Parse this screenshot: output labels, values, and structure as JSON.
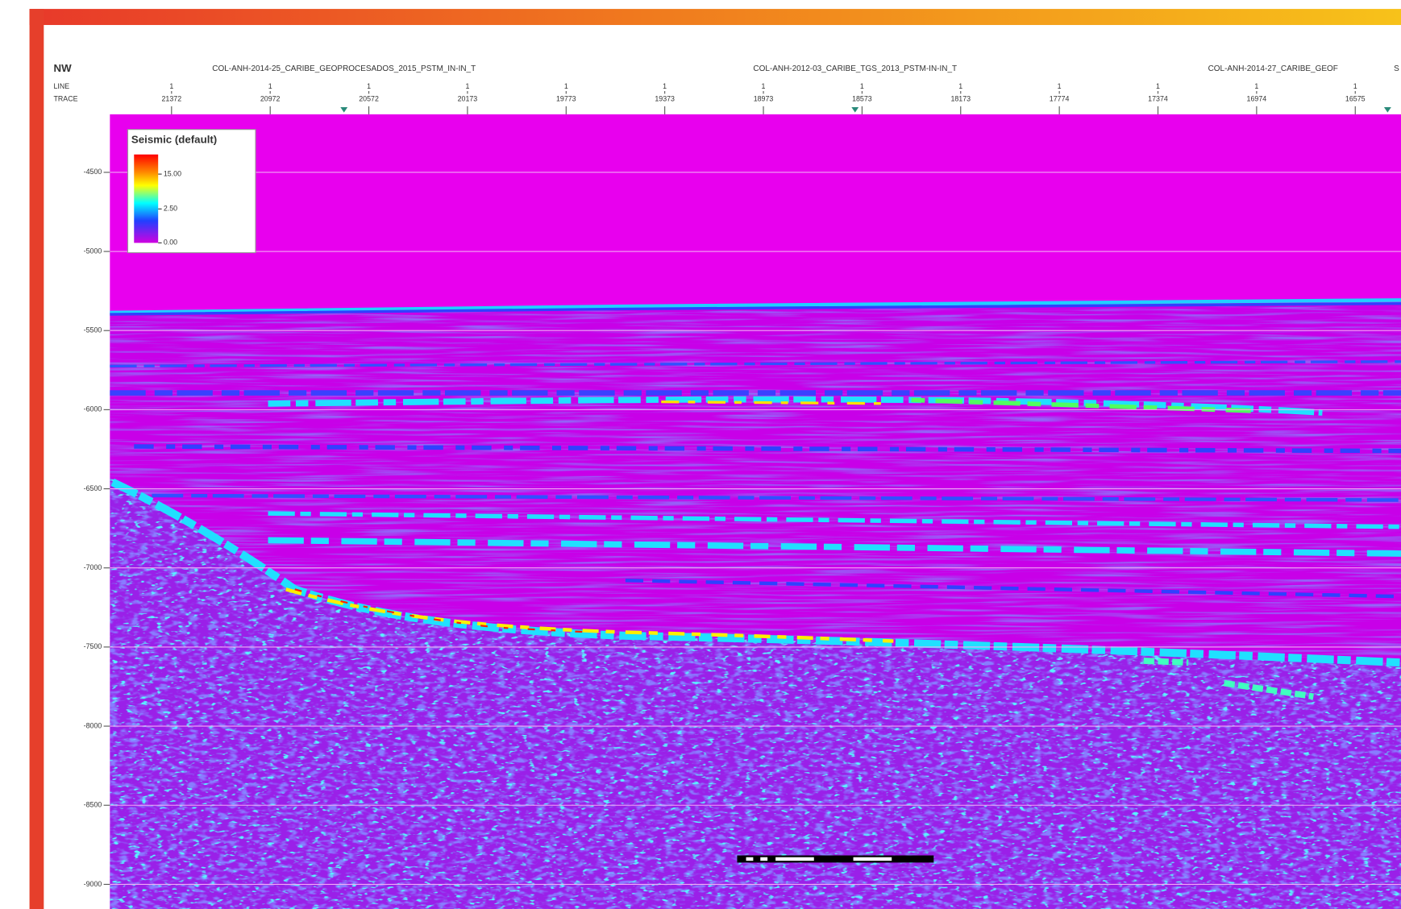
{
  "header": {
    "direction": "NW",
    "line_label": "LINE",
    "trace_label": "TRACE",
    "lines": [
      "COL-ANH-2014-25_CARIBE_GEOPROCESADOS_2015_PSTM_IN-IN_T",
      "COL-ANH-2012-03_CARIBE_TGS_2013_PSTM-IN-IN_T",
      "COL-ANH-2014-27_CARIBE_GEOF",
      "S"
    ],
    "traces": [
      {
        "line": 1,
        "trace": 21372
      },
      {
        "line": 1,
        "trace": 20972
      },
      {
        "line": 1,
        "trace": 20572
      },
      {
        "line": 1,
        "trace": 20173
      },
      {
        "line": 1,
        "trace": 19773
      },
      {
        "line": 1,
        "trace": 19373
      },
      {
        "line": 1,
        "trace": 18973
      },
      {
        "line": 1,
        "trace": 18573
      },
      {
        "line": 1,
        "trace": 18173
      },
      {
        "line": 1,
        "trace": 17774
      },
      {
        "line": 1,
        "trace": 17374
      },
      {
        "line": 1,
        "trace": 16974
      },
      {
        "line": 1,
        "trace": 16575
      }
    ]
  },
  "depth_ticks": [
    -4500,
    -5000,
    -5500,
    -6000,
    -6500,
    -7000,
    -7500,
    -8000,
    -8500,
    -9000
  ],
  "legend": {
    "title": "Seismic (default)",
    "labels": [
      "15.00",
      "2.50",
      "0.00"
    ]
  }
}
